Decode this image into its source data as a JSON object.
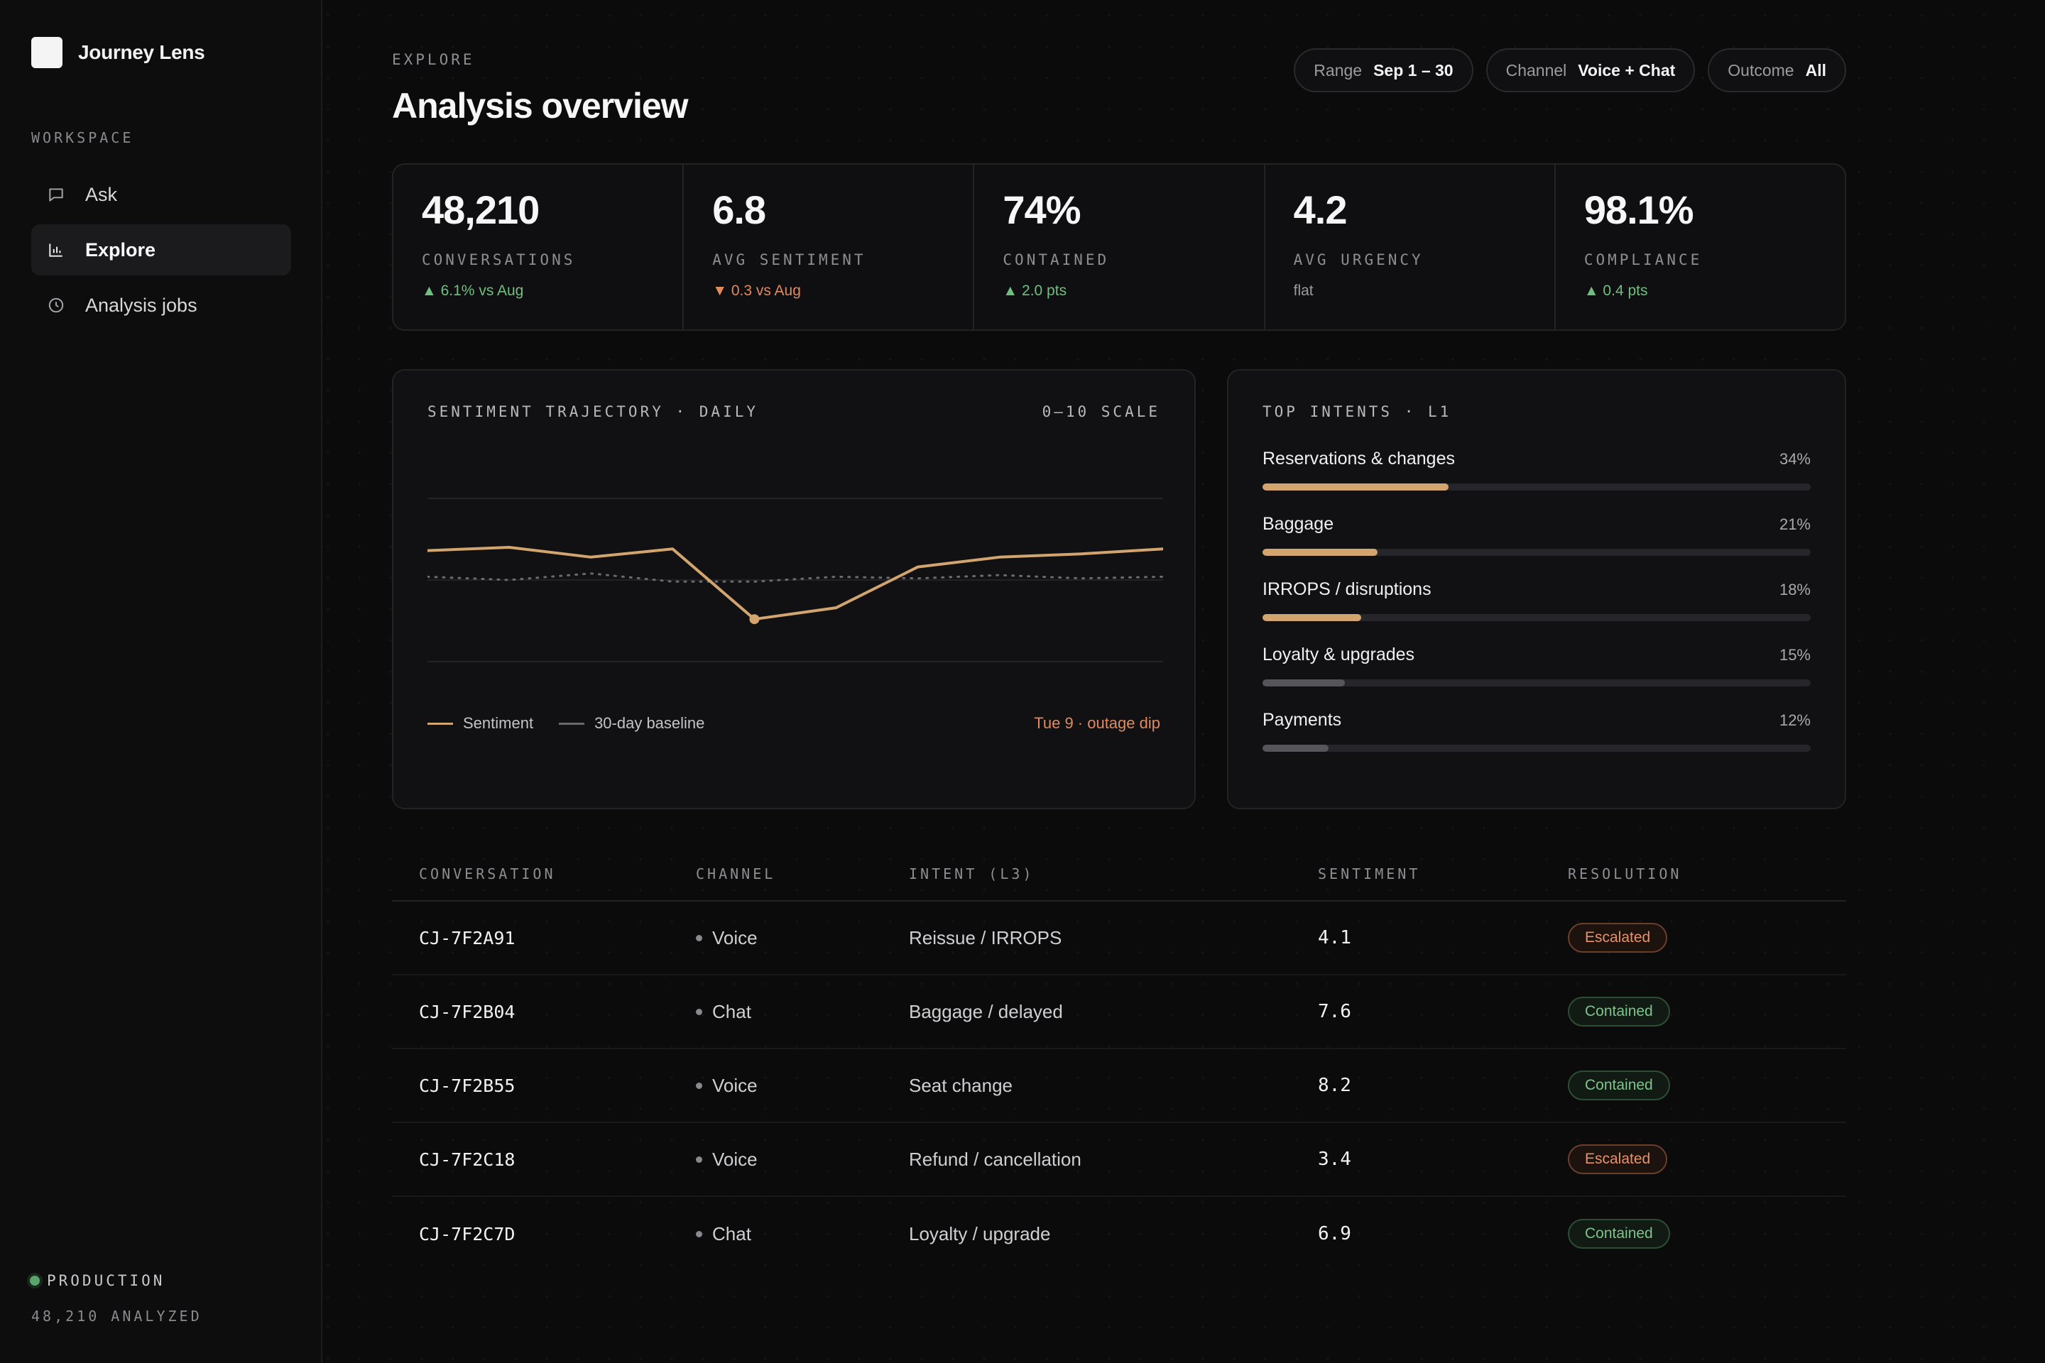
{
  "app": {
    "name": "Journey Lens"
  },
  "sidebar": {
    "section_label": "WORKSPACE",
    "items": [
      {
        "label": "Ask",
        "icon": "chat-bubble-icon",
        "active": false
      },
      {
        "label": "Explore",
        "icon": "bar-chart-icon",
        "active": true
      },
      {
        "label": "Analysis jobs",
        "icon": "clock-icon",
        "active": false
      }
    ],
    "environment": {
      "name": "PRODUCTION",
      "count_text": "48,210 ANALYZED",
      "status_color": "#5aa36a"
    }
  },
  "header": {
    "eyebrow": "EXPLORE",
    "title": "Analysis overview",
    "filters": [
      {
        "key": "Range",
        "value": "Sep 1 – 30"
      },
      {
        "key": "Channel",
        "value": "Voice + Chat"
      },
      {
        "key": "Outcome",
        "value": "All"
      }
    ]
  },
  "kpis": [
    {
      "value": "48,210",
      "label": "CONVERSATIONS",
      "delta": "▲ 6.1% vs Aug",
      "trend": "up"
    },
    {
      "value": "6.8",
      "label": "AVG SENTIMENT",
      "delta": "▼ 0.3 vs Aug",
      "trend": "down"
    },
    {
      "value": "74%",
      "label": "CONTAINED",
      "delta": "▲ 2.0 pts",
      "trend": "up"
    },
    {
      "value": "4.2",
      "label": "AVG URGENCY",
      "delta": "flat",
      "trend": "flat"
    },
    {
      "value": "98.1%",
      "label": "COMPLIANCE",
      "delta": "▲ 0.4 pts",
      "trend": "up"
    }
  ],
  "chart_data": {
    "type": "line",
    "title": "SENTIMENT TRAJECTORY · DAILY",
    "scale_label": "0–10 SCALE",
    "ylim": [
      4,
      9
    ],
    "x": [
      1,
      2,
      3,
      4,
      5,
      6,
      7,
      8,
      9,
      10
    ],
    "series": [
      {
        "name": "Sentiment",
        "color": "#d3a56e",
        "style": "solid",
        "values": [
          7.4,
          7.5,
          7.2,
          7.45,
          5.3,
          5.65,
          6.9,
          7.2,
          7.3,
          7.45
        ]
      },
      {
        "name": "30-day baseline",
        "color": "#6a6a6e",
        "style": "dotted",
        "values": [
          6.6,
          6.5,
          6.7,
          6.45,
          6.45,
          6.6,
          6.55,
          6.65,
          6.55,
          6.6
        ]
      }
    ],
    "highlight_index": 4,
    "annotation": "Tue 9 · outage dip",
    "grid": true
  },
  "intents": {
    "title": "TOP INTENTS · L1",
    "items": [
      {
        "label": "Reservations & changes",
        "pct_text": "34%",
        "pct": 34,
        "color": "#d3a56e"
      },
      {
        "label": "Baggage",
        "pct_text": "21%",
        "pct": 21,
        "color": "#d3a56e"
      },
      {
        "label": "IRROPS / disruptions",
        "pct_text": "18%",
        "pct": 18,
        "color": "#d3a56e"
      },
      {
        "label": "Loyalty & upgrades",
        "pct_text": "15%",
        "pct": 15,
        "color": "#55555a"
      },
      {
        "label": "Payments",
        "pct_text": "12%",
        "pct": 12,
        "color": "#55555a"
      }
    ]
  },
  "table": {
    "columns": [
      "CONVERSATION",
      "CHANNEL",
      "INTENT (L3)",
      "SENTIMENT",
      "RESOLUTION"
    ],
    "rows": [
      {
        "id": "CJ-7F2A91",
        "channel": "Voice",
        "intent": "Reissue / IRROPS",
        "sentiment": "4.1",
        "resolution": "Escalated"
      },
      {
        "id": "CJ-7F2B04",
        "channel": "Chat",
        "intent": "Baggage / delayed",
        "sentiment": "7.6",
        "resolution": "Contained"
      },
      {
        "id": "CJ-7F2B55",
        "channel": "Voice",
        "intent": "Seat change",
        "sentiment": "8.2",
        "resolution": "Contained"
      },
      {
        "id": "CJ-7F2C18",
        "channel": "Voice",
        "intent": "Refund / cancellation",
        "sentiment": "3.4",
        "resolution": "Escalated"
      },
      {
        "id": "CJ-7F2C7D",
        "channel": "Chat",
        "intent": "Loyalty / upgrade",
        "sentiment": "6.9",
        "resolution": "Contained"
      }
    ]
  }
}
